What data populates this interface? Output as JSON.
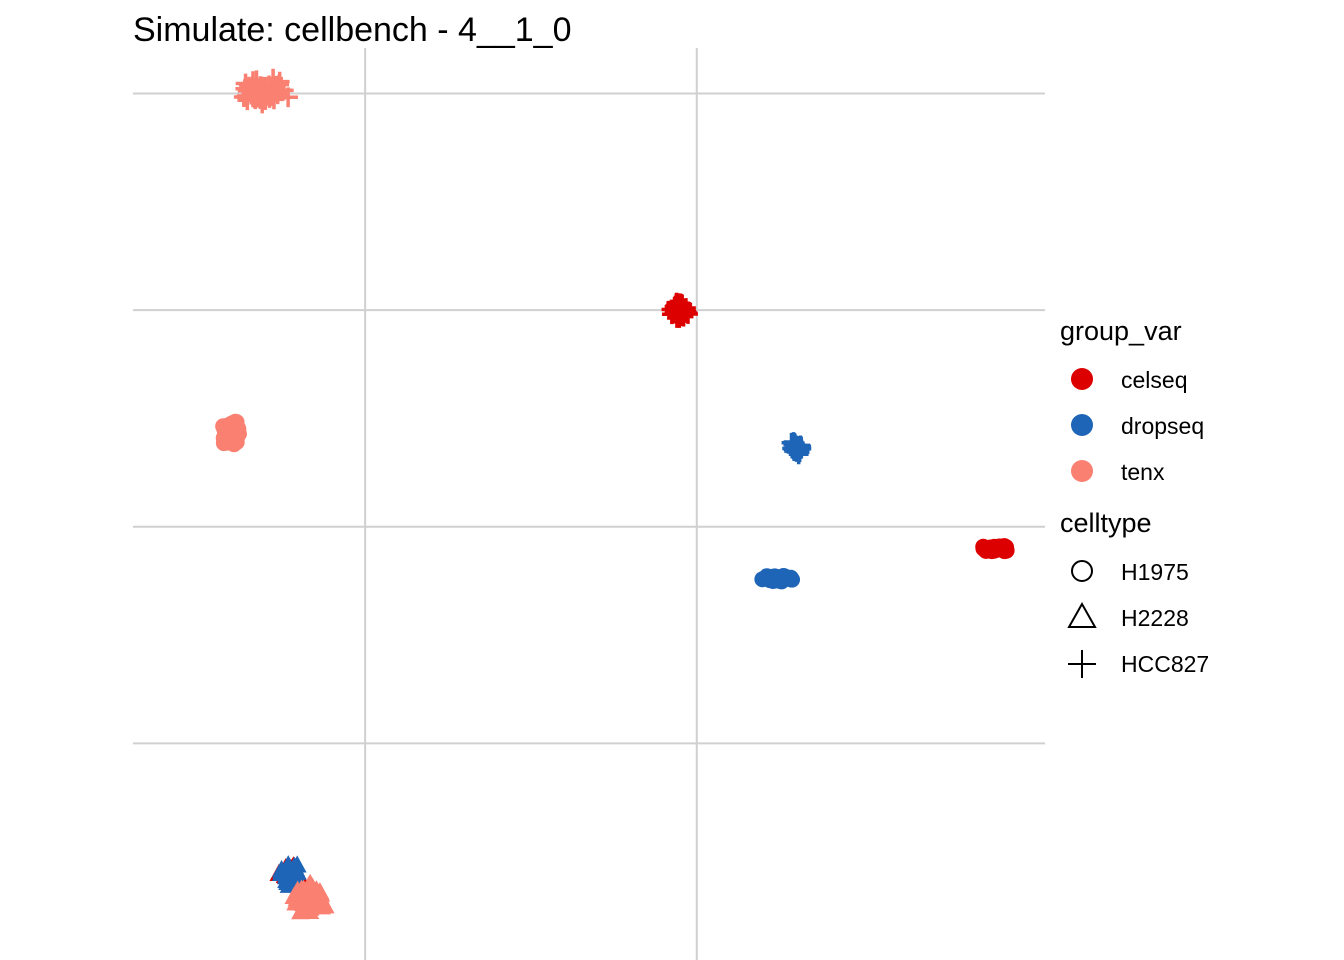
{
  "chart_data": {
    "type": "scatter",
    "title": "Simulate: cellbench - 4__1_0",
    "xlabel": "",
    "ylabel": "",
    "grid": true,
    "axis_ticks_labels_visible": false,
    "legend_position": "right",
    "legends": [
      {
        "title": "group_var",
        "kind": "color",
        "entries": [
          {
            "label": "celseq",
            "color": "#DC0000"
          },
          {
            "label": "dropseq",
            "color": "#1F65B7"
          },
          {
            "label": "tenx",
            "color": "#FA8072"
          }
        ]
      },
      {
        "title": "celltype",
        "kind": "shape",
        "entries": [
          {
            "label": "H1975",
            "shape": "circle"
          },
          {
            "label": "H2228",
            "shape": "triangle"
          },
          {
            "label": "HCC827",
            "shape": "cross"
          }
        ]
      }
    ],
    "clusters": [
      {
        "group": "tenx",
        "celltype": "HCC827",
        "x": 1.4,
        "y": 5.01,
        "spread_x": 0.17,
        "spread_y": 0.07,
        "count": 80
      },
      {
        "group": "celseq",
        "celltype": "HCC827",
        "x": 3.9,
        "y": 4.0,
        "spread_x": 0.08,
        "spread_y": 0.05,
        "count": 50
      },
      {
        "group": "tenx",
        "celltype": "H1975",
        "x": 1.2,
        "y": 3.43,
        "spread_x": 0.07,
        "spread_y": 0.07,
        "count": 60
      },
      {
        "group": "dropseq",
        "celltype": "HCC827",
        "x": 4.6,
        "y": 3.37,
        "spread_x": 0.04,
        "spread_y": 0.05,
        "count": 40
      },
      {
        "group": "celseq",
        "celltype": "H1975",
        "x": 5.8,
        "y": 2.9,
        "spread_x": 0.1,
        "spread_y": 0.02,
        "count": 50
      },
      {
        "group": "dropseq",
        "celltype": "H1975",
        "x": 4.5,
        "y": 2.76,
        "spread_x": 0.12,
        "spread_y": 0.02,
        "count": 50
      },
      {
        "group": "celseq",
        "celltype": "H2228",
        "x": 1.55,
        "y": 1.4,
        "spread_x": 0.08,
        "spread_y": 0.06,
        "count": 30
      },
      {
        "group": "dropseq",
        "celltype": "H2228",
        "x": 1.55,
        "y": 1.39,
        "spread_x": 0.09,
        "spread_y": 0.07,
        "count": 40
      },
      {
        "group": "tenx",
        "celltype": "H2228",
        "x": 1.67,
        "y": 1.28,
        "spread_x": 0.11,
        "spread_y": 0.08,
        "count": 90
      }
    ],
    "xlim": [
      0.6,
      6.1
    ],
    "ylim": [
      1.0,
      5.21
    ],
    "x_gridlines": [
      2,
      4
    ],
    "y_gridlines": [
      2,
      3,
      4,
      5
    ]
  }
}
